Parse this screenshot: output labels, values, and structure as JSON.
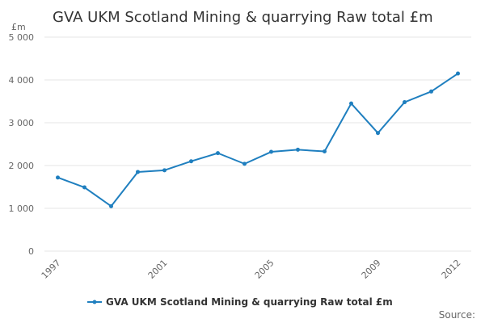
{
  "chart_data": {
    "type": "line",
    "title": "GVA UKM Scotland Mining & quarrying Raw total £m",
    "ylabel": "£m",
    "xlabel": "",
    "ylim": [
      0,
      5000
    ],
    "yticks": [
      0,
      1000,
      2000,
      3000,
      4000,
      5000
    ],
    "ytick_labels": [
      "0",
      "1 000",
      "2 000",
      "3 000",
      "4 000",
      "5 000"
    ],
    "xticks": [
      "1997",
      "2001",
      "2005",
      "2009",
      "2012"
    ],
    "x": [
      1997,
      1998,
      1999,
      2000,
      2001,
      2002,
      2003,
      2004,
      2005,
      2006,
      2007,
      2008,
      2009,
      2010,
      2011,
      2012
    ],
    "series": [
      {
        "name": "GVA UKM Scotland Mining & quarrying Raw total £m",
        "color": "#1f7fbf",
        "values": [
          1720,
          1490,
          1050,
          1850,
          1890,
          2100,
          2290,
          2040,
          2320,
          2370,
          2330,
          3450,
          2760,
          3480,
          3730,
          4150
        ]
      }
    ],
    "grid": true,
    "legend": "bottom-center",
    "source_label": "Source:"
  }
}
